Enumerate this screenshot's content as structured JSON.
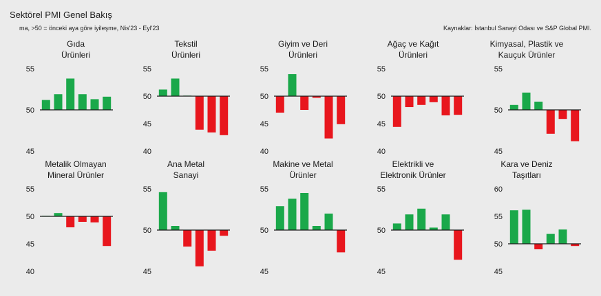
{
  "header": {
    "title": "Sektörel PMI Genel Bakış",
    "subtitle": "ma, >50 = önceki aya göre iyileşme, Nis'23 - Eyl'23",
    "source": "Kaynaklar: İstanbul Sanayi Odası ve S&P Global PMI."
  },
  "colors": {
    "up": "#1aa84a",
    "down": "#e8161d",
    "axis": "#1a1a1a",
    "background": "#ebebeb"
  },
  "chart_data": [
    {
      "type": "bar",
      "title": [
        "Gıda",
        "Ürünleri"
      ],
      "ylim": [
        45,
        55
      ],
      "yticks": [
        45,
        50,
        55
      ],
      "baseline": 50,
      "values": [
        51.2,
        51.9,
        53.8,
        51.9,
        51.3,
        51.6
      ]
    },
    {
      "type": "bar",
      "title": [
        "Tekstil",
        "Ürünleri"
      ],
      "ylim": [
        40,
        55
      ],
      "yticks": [
        40,
        45,
        50,
        55
      ],
      "baseline": 50,
      "values": [
        51.2,
        53.2,
        50.1,
        43.9,
        43.4,
        42.9
      ]
    },
    {
      "type": "bar",
      "title": [
        "Giyim ve Deri",
        "Ürünleri"
      ],
      "ylim": [
        40,
        55
      ],
      "yticks": [
        40,
        45,
        50,
        55
      ],
      "baseline": 50,
      "values": [
        47.0,
        54.0,
        47.5,
        49.7,
        42.3,
        44.9
      ]
    },
    {
      "type": "bar",
      "title": [
        "Ağaç ve Kağıt",
        "Ürünleri"
      ],
      "ylim": [
        40,
        55
      ],
      "yticks": [
        40,
        45,
        50,
        55
      ],
      "baseline": 50,
      "values": [
        44.4,
        48.0,
        48.4,
        48.9,
        46.5,
        46.6
      ]
    },
    {
      "type": "bar",
      "title": [
        "Kimyasal, Plastik ve",
        "Kauçuk Ürünler"
      ],
      "ylim": [
        45,
        55
      ],
      "yticks": [
        45,
        50,
        55
      ],
      "baseline": 50,
      "values": [
        50.6,
        52.1,
        51.0,
        47.1,
        48.9,
        46.2
      ]
    },
    {
      "type": "bar",
      "title": [
        "Metalik Olmayan",
        "Mineral Ürünler"
      ],
      "ylim": [
        40,
        55
      ],
      "yticks": [
        40,
        45,
        50,
        55
      ],
      "baseline": 50,
      "values": [
        50.1,
        50.6,
        48.0,
        49.0,
        48.9,
        44.6
      ]
    },
    {
      "type": "bar",
      "title": [
        "Ana Metal",
        "Sanayi"
      ],
      "ylim": [
        45,
        55
      ],
      "yticks": [
        45,
        50,
        55
      ],
      "baseline": 50,
      "values": [
        54.6,
        50.5,
        48.0,
        45.6,
        47.5,
        49.3
      ]
    },
    {
      "type": "bar",
      "title": [
        "Makine ve Metal",
        "Ürünler"
      ],
      "ylim": [
        45,
        55
      ],
      "yticks": [
        45,
        50,
        55
      ],
      "baseline": 50,
      "values": [
        52.9,
        53.8,
        54.5,
        50.5,
        52.0,
        47.3
      ]
    },
    {
      "type": "bar",
      "title": [
        "Elektrikli ve",
        "Elektronik Ürünler"
      ],
      "ylim": [
        45,
        55
      ],
      "yticks": [
        45,
        50,
        55
      ],
      "baseline": 50,
      "values": [
        50.8,
        51.9,
        52.6,
        50.3,
        51.9,
        46.4
      ]
    },
    {
      "type": "bar",
      "title": [
        "Kara ve Deniz",
        "Taşıtları"
      ],
      "ylim": [
        45,
        60
      ],
      "yticks": [
        45,
        50,
        55,
        60
      ],
      "baseline": 50,
      "values": [
        56.1,
        56.2,
        49.0,
        51.8,
        52.6,
        49.6
      ]
    }
  ]
}
